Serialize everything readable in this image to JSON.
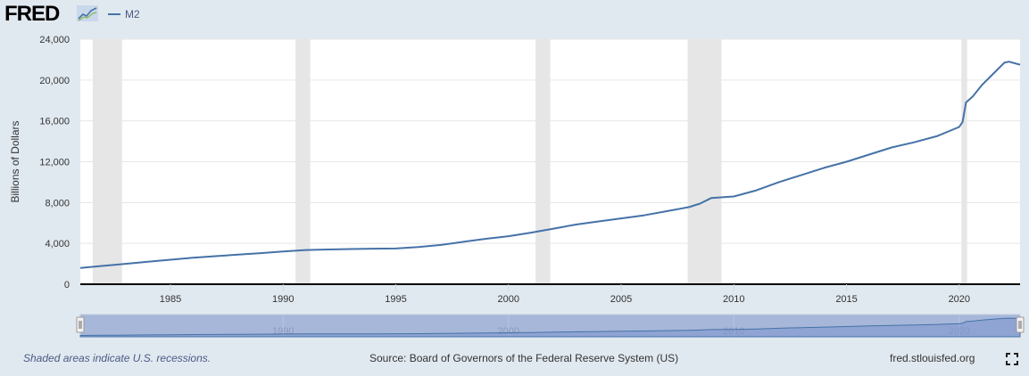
{
  "header": {
    "logo_text": "FRED",
    "logo_icon": "line-chart-icon",
    "legend_label": "M2"
  },
  "footer": {
    "note": "Shaded areas indicate U.S. recessions.",
    "source": "Source: Board of Governors of the Federal Reserve System (US)",
    "site": "fred.stlouisfed.org",
    "expand_icon": "fullscreen-icon"
  },
  "colors": {
    "line": "#4572a7",
    "recession": "#e6e6e6",
    "background": "#e1e9f0",
    "navigator_fill": "#a7b7d9"
  },
  "chart_data": {
    "type": "line",
    "ylabel": "Billions of Dollars",
    "xlim": [
      1981.0,
      2022.7
    ],
    "ylim": [
      0,
      24000
    ],
    "yticks": [
      0,
      4000,
      8000,
      12000,
      16000,
      20000,
      24000
    ],
    "ytick_labels": [
      "0",
      "4,000",
      "8,000",
      "12,000",
      "16,000",
      "20,000",
      "24,000"
    ],
    "xticks": [
      1985,
      1990,
      1995,
      2000,
      2005,
      2010,
      2015,
      2020
    ],
    "navigator_ticks": [
      1990,
      2000,
      2010,
      2020
    ],
    "grid": "horizontal",
    "recessions": [
      [
        1981.55,
        1982.85
      ],
      [
        1990.55,
        1991.2
      ],
      [
        2001.2,
        2001.85
      ],
      [
        2007.95,
        2009.45
      ],
      [
        2020.1,
        2020.35
      ]
    ],
    "series": [
      {
        "name": "M2",
        "x": [
          1981.0,
          1982.0,
          1983.0,
          1984.0,
          1985.0,
          1986.0,
          1987.0,
          1988.0,
          1989.0,
          1990.0,
          1991.0,
          1992.0,
          1993.0,
          1994.0,
          1995.0,
          1996.0,
          1997.0,
          1998.0,
          1999.0,
          2000.0,
          2001.0,
          2002.0,
          2003.0,
          2004.0,
          2005.0,
          2006.0,
          2007.0,
          2008.0,
          2008.5,
          2009.0,
          2010.0,
          2011.0,
          2012.0,
          2013.0,
          2014.0,
          2015.0,
          2016.0,
          2017.0,
          2018.0,
          2019.0,
          2020.0,
          2020.15,
          2020.3,
          2020.6,
          2021.0,
          2021.5,
          2022.0,
          2022.2,
          2022.7
        ],
        "y": [
          1600,
          1800,
          2000,
          2200,
          2400,
          2600,
          2750,
          2900,
          3050,
          3200,
          3350,
          3400,
          3450,
          3480,
          3500,
          3650,
          3850,
          4150,
          4450,
          4700,
          5050,
          5450,
          5850,
          6150,
          6450,
          6750,
          7150,
          7550,
          7900,
          8450,
          8600,
          9200,
          10000,
          10700,
          11400,
          12000,
          12700,
          13400,
          13900,
          14500,
          15400,
          15900,
          17800,
          18400,
          19500,
          20600,
          21700,
          21800,
          21500
        ]
      }
    ]
  }
}
